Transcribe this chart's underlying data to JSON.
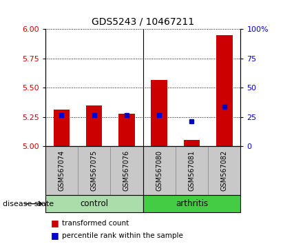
{
  "title": "GDS5243 / 10467211",
  "samples": [
    "GSM567074",
    "GSM567075",
    "GSM567076",
    "GSM567080",
    "GSM567081",
    "GSM567082"
  ],
  "red_values": [
    5.315,
    5.35,
    5.28,
    5.57,
    5.055,
    5.95
  ],
  "blue_values": [
    5.265,
    5.27,
    5.265,
    5.265,
    5.215,
    5.34
  ],
  "y_min": 5.0,
  "y_max": 6.0,
  "y_ticks_left": [
    5.0,
    5.25,
    5.5,
    5.75,
    6.0
  ],
  "y_ticks_right": [
    0,
    25,
    50,
    75,
    100
  ],
  "groups": [
    {
      "label": "control",
      "start": 0,
      "end": 3,
      "color": "#aaddaa"
    },
    {
      "label": "arthritis",
      "start": 3,
      "end": 6,
      "color": "#44cc44"
    }
  ],
  "bar_color": "#CC0000",
  "blue_color": "#0000CC",
  "group_label": "disease state",
  "legend_red": "transformed count",
  "legend_blue": "percentile rank within the sample",
  "tick_label_color_left": "#CC0000",
  "tick_label_color_right": "#0000CC",
  "bar_width": 0.5,
  "sample_box_color": "#C8C8C8"
}
